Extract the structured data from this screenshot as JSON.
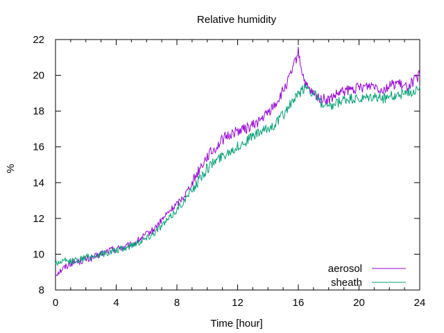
{
  "chart_data": {
    "type": "line",
    "title": "Relative humidity",
    "xlabel": "Time [hour]",
    "ylabel": "%",
    "xlim": [
      0,
      24
    ],
    "ylim": [
      8,
      22
    ],
    "xticks": [
      0,
      4,
      8,
      12,
      16,
      20,
      24
    ],
    "yticks": [
      8,
      10,
      12,
      14,
      16,
      18,
      20,
      22
    ],
    "grid": false,
    "legend_position": "bottom-right",
    "series": [
      {
        "name": "aerosol",
        "color": "#9400d3",
        "x": [
          0,
          0.5,
          1,
          1.5,
          2,
          2.5,
          3,
          3.5,
          4,
          4.5,
          5,
          5.5,
          6,
          6.5,
          7,
          7.5,
          8,
          8.5,
          9,
          9.5,
          10,
          10.5,
          11,
          11.5,
          12,
          12.5,
          13,
          13.5,
          14,
          14.5,
          15,
          15.5,
          16,
          16.25,
          16.5,
          17,
          17.5,
          18,
          18.5,
          19,
          19.5,
          20,
          20.5,
          21,
          21.5,
          22,
          22.5,
          23,
          23.5,
          24
        ],
        "y": [
          8.9,
          9.2,
          9.5,
          9.6,
          9.7,
          9.8,
          10.0,
          10.2,
          10.3,
          10.4,
          10.5,
          10.8,
          11.1,
          11.4,
          11.9,
          12.4,
          12.8,
          13.3,
          14.0,
          14.8,
          15.5,
          15.9,
          16.4,
          16.7,
          16.9,
          17.0,
          17.2,
          17.5,
          17.9,
          18.4,
          19.1,
          20.0,
          21.3,
          20.2,
          19.4,
          18.9,
          18.7,
          18.6,
          18.9,
          19.1,
          19.2,
          19.3,
          19.4,
          19.5,
          19.2,
          19.4,
          19.6,
          19.3,
          19.6,
          20.0
        ]
      },
      {
        "name": "sheath",
        "color": "#009e73",
        "x": [
          0,
          0.5,
          1,
          1.5,
          2,
          2.5,
          3,
          3.5,
          4,
          4.5,
          5,
          5.5,
          6,
          6.5,
          7,
          7.5,
          8,
          8.5,
          9,
          9.5,
          10,
          10.5,
          11,
          11.5,
          12,
          12.5,
          13,
          13.5,
          14,
          14.5,
          15,
          15.5,
          16,
          16.5,
          17,
          17.5,
          18,
          18.5,
          19,
          19.5,
          20,
          20.5,
          21,
          21.5,
          22,
          22.5,
          23,
          23.5,
          24
        ],
        "y": [
          9.5,
          9.6,
          9.6,
          9.7,
          9.8,
          9.9,
          10.0,
          10.1,
          10.2,
          10.3,
          10.5,
          10.7,
          10.9,
          11.2,
          11.6,
          12.0,
          12.5,
          13.0,
          13.6,
          14.2,
          14.8,
          15.2,
          15.5,
          15.8,
          16.0,
          16.3,
          16.6,
          16.8,
          17.0,
          17.3,
          17.8,
          18.4,
          18.9,
          19.4,
          19.0,
          18.4,
          18.1,
          18.4,
          18.6,
          18.7,
          18.6,
          18.7,
          18.8,
          18.7,
          18.8,
          18.9,
          19.0,
          19.1,
          19.4
        ]
      }
    ]
  }
}
